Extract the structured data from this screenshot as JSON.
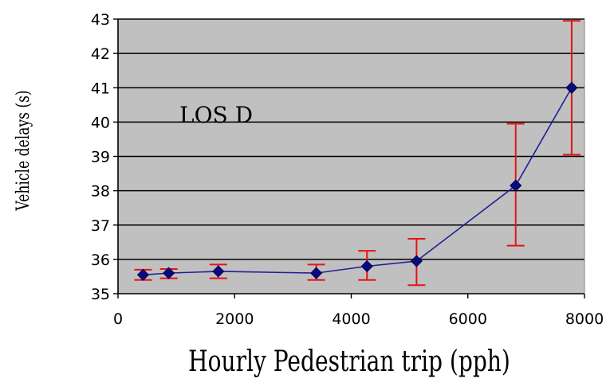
{
  "chart_data": {
    "type": "line",
    "xlabel": "Hourly Pedestrian trip (pph)",
    "ylabel": "Vehicle delays (s)",
    "xlim": [
      0,
      8000
    ],
    "ylim": [
      35,
      43
    ],
    "x_ticks": [
      0,
      2000,
      4000,
      6000,
      8000
    ],
    "y_ticks": [
      35,
      36,
      37,
      38,
      39,
      40,
      41,
      42,
      43
    ],
    "grid": "horizontal",
    "annotation": "LOS D",
    "colors": {
      "line": "#1f1f9a",
      "marker": "#0a0a80",
      "error_bar": "#e31414",
      "plot_background": "#c0c0c0",
      "grid": "#000000"
    },
    "series": [
      {
        "x": [
          430,
          870,
          1720,
          3400,
          4270,
          5120,
          6820,
          7780
        ],
        "y": [
          35.55,
          35.6,
          35.65,
          35.6,
          35.8,
          35.95,
          38.15,
          41.0
        ],
        "error_low": [
          35.4,
          35.45,
          35.45,
          35.4,
          35.4,
          35.25,
          36.4,
          39.05
        ],
        "error_high": [
          35.7,
          35.72,
          35.85,
          35.85,
          36.25,
          36.6,
          39.95,
          42.95
        ]
      }
    ]
  }
}
